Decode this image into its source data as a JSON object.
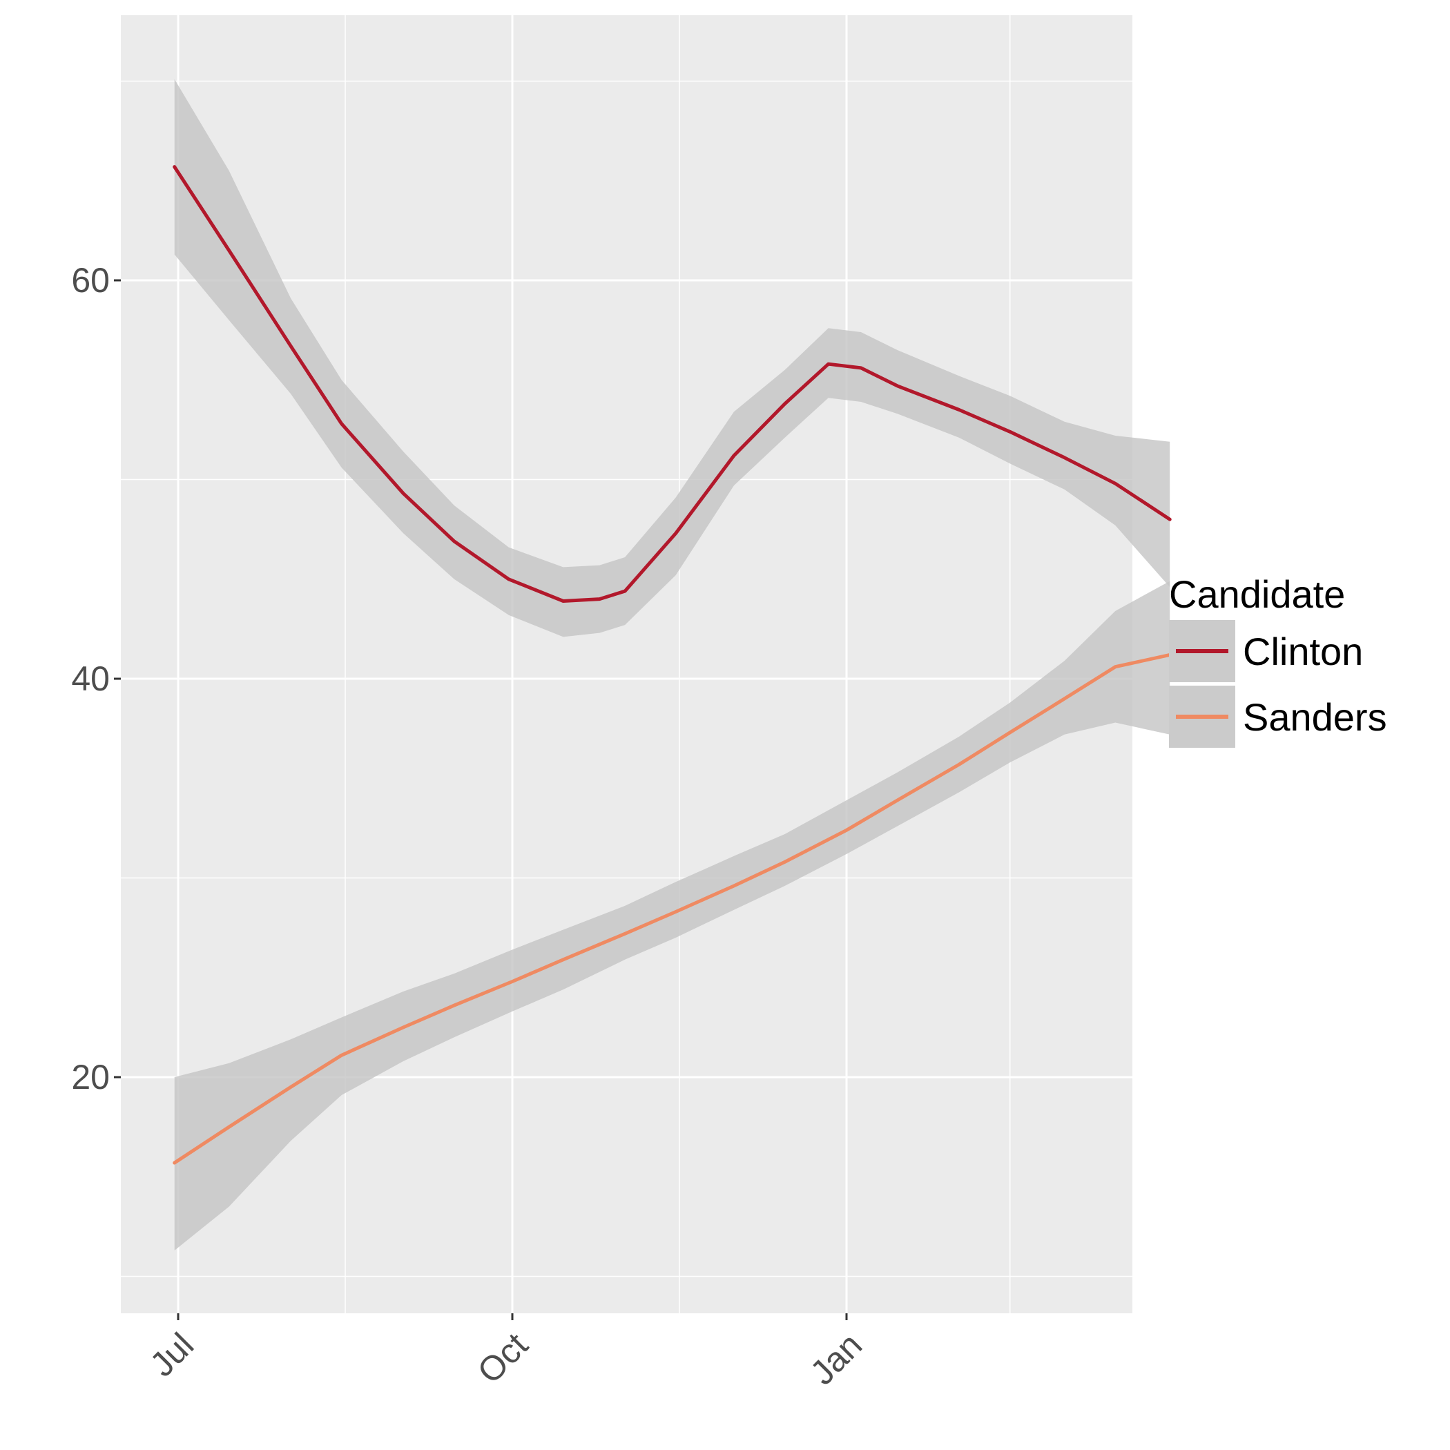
{
  "chart_data": {
    "type": "line",
    "title": "",
    "xlabel": "",
    "ylabel": "",
    "x_ticks": [
      "Jul",
      "Oct",
      "Jan"
    ],
    "y_ticks": [
      20,
      40,
      60
    ],
    "grid": true,
    "legend": {
      "title": "Candidate",
      "position": "right",
      "entries": [
        "Clinton",
        "Sanders"
      ]
    },
    "colors": {
      "panel": "#ebebeb",
      "grid": "#ffffff",
      "ribbon": "#c4c4c4",
      "Clinton": "#b2182b",
      "Sanders": "#ef8a62"
    },
    "series": [
      {
        "name": "Clinton",
        "points": [
          {
            "date": "2015-06-30",
            "value": 65.7,
            "lower": 61.3,
            "upper": 70.1
          },
          {
            "date": "2015-07-15",
            "value": 61.5,
            "lower": 58.0,
            "upper": 65.5
          },
          {
            "date": "2015-08-01",
            "value": 56.7,
            "lower": 54.3,
            "upper": 59.1
          },
          {
            "date": "2015-08-15",
            "value": 52.8,
            "lower": 50.6,
            "upper": 55.0
          },
          {
            "date": "2015-09-01",
            "value": 49.3,
            "lower": 47.3,
            "upper": 51.4
          },
          {
            "date": "2015-09-15",
            "value": 46.9,
            "lower": 45.0,
            "upper": 48.7
          },
          {
            "date": "2015-09-30",
            "value": 45.0,
            "lower": 43.2,
            "upper": 46.6
          },
          {
            "date": "2015-10-15",
            "value": 43.9,
            "lower": 42.1,
            "upper": 45.6
          },
          {
            "date": "2015-10-25",
            "value": 44.0,
            "lower": 42.3,
            "upper": 45.7
          },
          {
            "date": "2015-11-01",
            "value": 44.4,
            "lower": 42.7,
            "upper": 46.1
          },
          {
            "date": "2015-11-15",
            "value": 47.3,
            "lower": 45.2,
            "upper": 49.1
          },
          {
            "date": "2015-12-01",
            "value": 51.2,
            "lower": 49.7,
            "upper": 53.4
          },
          {
            "date": "2015-12-15",
            "value": 53.8,
            "lower": 52.1,
            "upper": 55.5
          },
          {
            "date": "2015-12-27",
            "value": 55.8,
            "lower": 54.1,
            "upper": 57.6
          },
          {
            "date": "2016-01-05",
            "value": 55.6,
            "lower": 53.9,
            "upper": 57.4
          },
          {
            "date": "2016-01-15",
            "value": 54.7,
            "lower": 53.3,
            "upper": 56.5
          },
          {
            "date": "2016-02-01",
            "value": 53.5,
            "lower": 52.1,
            "upper": 55.2
          },
          {
            "date": "2016-02-15",
            "value": 52.4,
            "lower": 50.8,
            "upper": 54.2
          },
          {
            "date": "2016-03-01",
            "value": 51.1,
            "lower": 49.5,
            "upper": 52.9
          },
          {
            "date": "2016-03-15",
            "value": 49.8,
            "lower": 47.7,
            "upper": 52.2
          },
          {
            "date": "2016-03-30",
            "value": 48.0,
            "lower": 44.6,
            "upper": 51.9
          }
        ]
      },
      {
        "name": "Sanders",
        "points": [
          {
            "date": "2015-06-30",
            "value": 15.7,
            "lower": 11.3,
            "upper": 20.0
          },
          {
            "date": "2015-07-15",
            "value": 17.5,
            "lower": 13.5,
            "upper": 20.7
          },
          {
            "date": "2015-08-01",
            "value": 19.5,
            "lower": 16.8,
            "upper": 21.9
          },
          {
            "date": "2015-08-15",
            "value": 21.1,
            "lower": 19.1,
            "upper": 23.0
          },
          {
            "date": "2015-09-01",
            "value": 22.5,
            "lower": 20.8,
            "upper": 24.3
          },
          {
            "date": "2015-09-15",
            "value": 23.6,
            "lower": 22.0,
            "upper": 25.2
          },
          {
            "date": "2015-10-01",
            "value": 24.8,
            "lower": 23.3,
            "upper": 26.4
          },
          {
            "date": "2015-10-15",
            "value": 25.9,
            "lower": 24.4,
            "upper": 27.4
          },
          {
            "date": "2015-11-01",
            "value": 27.2,
            "lower": 25.9,
            "upper": 28.6
          },
          {
            "date": "2015-11-15",
            "value": 28.3,
            "lower": 27.0,
            "upper": 29.8
          },
          {
            "date": "2015-12-01",
            "value": 29.6,
            "lower": 28.4,
            "upper": 31.1
          },
          {
            "date": "2015-12-15",
            "value": 30.8,
            "lower": 29.6,
            "upper": 32.2
          },
          {
            "date": "2016-01-01",
            "value": 32.4,
            "lower": 31.2,
            "upper": 33.9
          },
          {
            "date": "2016-01-15",
            "value": 33.9,
            "lower": 32.6,
            "upper": 35.3
          },
          {
            "date": "2016-02-01",
            "value": 35.7,
            "lower": 34.3,
            "upper": 37.1
          },
          {
            "date": "2016-02-15",
            "value": 37.3,
            "lower": 35.8,
            "upper": 38.8
          },
          {
            "date": "2016-03-01",
            "value": 39.0,
            "lower": 37.2,
            "upper": 40.9
          },
          {
            "date": "2016-03-15",
            "value": 40.6,
            "lower": 37.8,
            "upper": 43.4
          },
          {
            "date": "2016-03-30",
            "value": 41.2,
            "lower": 37.2,
            "upper": 44.9
          }
        ]
      }
    ]
  }
}
